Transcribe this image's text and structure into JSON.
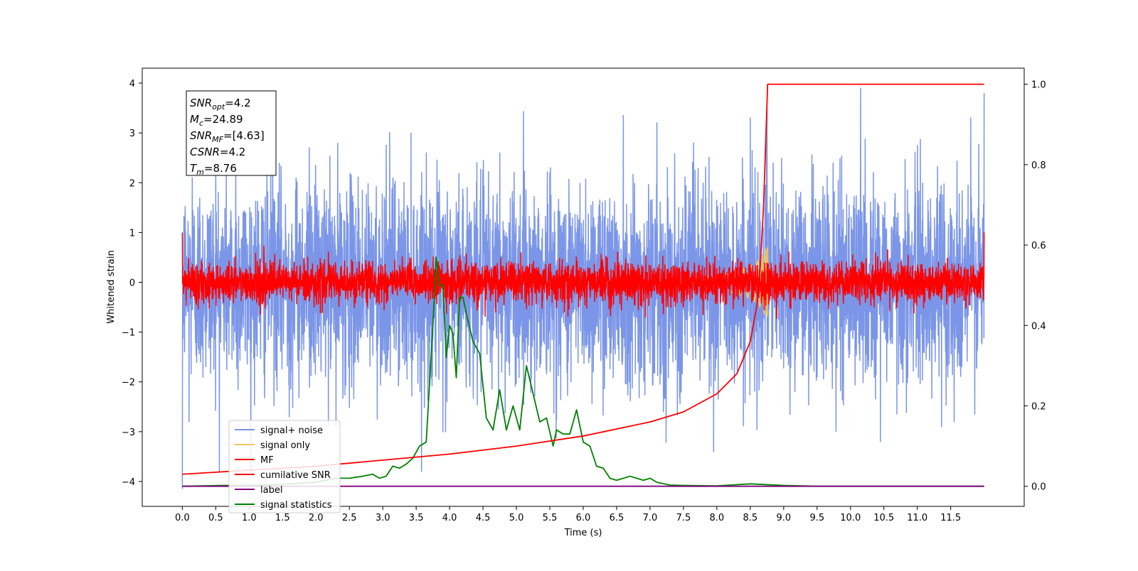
{
  "chart_data": {
    "type": "line",
    "title": "",
    "xlabel": "Time (s)",
    "ylabel": "Whitened strain",
    "xlim": [
      -0.6,
      12.6
    ],
    "ylim": [
      -4.5,
      4.3
    ],
    "y2lim": [
      -0.05,
      1.04
    ],
    "xticks": [
      "0.0",
      "0.5",
      "1.0",
      "1.5",
      "2.0",
      "2.5",
      "3.0",
      "3.5",
      "4.0",
      "4.5",
      "5.0",
      "5.5",
      "6.0",
      "6.5",
      "7.0",
      "7.5",
      "8.0",
      "8.5",
      "9.0",
      "9.5",
      "10.0",
      "10.5",
      "11.0",
      "11.5"
    ],
    "yticks": [
      "4",
      "3",
      "2",
      "1",
      "0",
      "−1",
      "−2",
      "−3",
      "−4"
    ],
    "y2ticks": [
      "1.0",
      "0.8",
      "0.6",
      "0.4",
      "0.2",
      "0.0"
    ],
    "grid": false,
    "legend_position": "lower-left",
    "series": [
      {
        "name": "signal+ noise",
        "color": "#7b96e8",
        "axis": "left",
        "kind": "noise",
        "amplitude_std": 1.0,
        "x_range": [
          0,
          12
        ],
        "peak_points": [
          [
            0.15,
            2.1
          ],
          [
            0.5,
            2.5
          ],
          [
            0.8,
            2.6
          ],
          [
            1.35,
            2.7
          ],
          [
            1.9,
            2.7
          ],
          [
            2.3,
            3.65
          ],
          [
            3.05,
            2.75
          ],
          [
            3.65,
            2.6
          ],
          [
            4.75,
            2.6
          ],
          [
            5.5,
            2.2
          ],
          [
            6.6,
            3.35
          ],
          [
            7.65,
            2.8
          ],
          [
            8.5,
            3.3
          ],
          [
            8.75,
            3.5
          ],
          [
            10.15,
            3.9
          ],
          [
            11.8,
            3.3
          ],
          [
            12.0,
            3.8
          ]
        ],
        "trough_points": [
          [
            0.0,
            -4.15
          ],
          [
            0.1,
            -2.8
          ],
          [
            1.6,
            -2.7
          ],
          [
            2.3,
            -2.9
          ],
          [
            3.9,
            -3.0
          ],
          [
            7.2,
            -2.6
          ],
          [
            7.95,
            -3.4
          ],
          [
            10.45,
            -3.2
          ],
          [
            11.55,
            -2.8
          ]
        ]
      },
      {
        "name": "signal only",
        "color": "#f5c55a",
        "axis": "left",
        "kind": "chirp",
        "x_range": [
          0,
          12
        ],
        "merger_time": 8.76,
        "peak_amplitude": 0.7
      },
      {
        "name": "MF",
        "color": "#ff0000",
        "axis": "left",
        "kind": "noise",
        "amplitude_std": 0.2,
        "x_range": [
          0,
          12
        ],
        "endpoints": [
          [
            0.0,
            1.0
          ],
          [
            12.0,
            1.0
          ]
        ]
      },
      {
        "name": "cumilative SNR",
        "color": "#ff0000",
        "axis": "right",
        "kind": "curve",
        "x": [
          0.0,
          0.5,
          1.0,
          2.0,
          3.0,
          4.0,
          5.0,
          6.0,
          7.0,
          7.5,
          8.0,
          8.3,
          8.5,
          8.6,
          8.65,
          8.7,
          8.73,
          8.76,
          9.0,
          10.0,
          11.0,
          12.0
        ],
        "y": [
          0.03,
          0.035,
          0.04,
          0.05,
          0.065,
          0.08,
          0.1,
          0.125,
          0.16,
          0.185,
          0.23,
          0.28,
          0.36,
          0.45,
          0.55,
          0.7,
          0.85,
          1.0,
          1.0,
          1.0,
          1.0,
          1.0
        ]
      },
      {
        "name": "label",
        "color": "#800080",
        "axis": "right",
        "kind": "curve",
        "x": [
          0.0,
          12.0
        ],
        "y": [
          0.0,
          0.0
        ]
      },
      {
        "name": "signal statistics",
        "color": "#008000",
        "axis": "right",
        "kind": "curve",
        "x": [
          0.0,
          0.3,
          0.6,
          1.0,
          1.5,
          2.0,
          2.3,
          2.5,
          2.7,
          2.85,
          2.95,
          3.05,
          3.15,
          3.25,
          3.35,
          3.45,
          3.55,
          3.65,
          3.75,
          3.8,
          3.85,
          3.9,
          3.95,
          4.0,
          4.05,
          4.1,
          4.15,
          4.2,
          4.25,
          4.35,
          4.45,
          4.55,
          4.65,
          4.75,
          4.85,
          4.95,
          5.05,
          5.15,
          5.25,
          5.35,
          5.45,
          5.55,
          5.6,
          5.7,
          5.8,
          5.9,
          6.0,
          6.1,
          6.2,
          6.3,
          6.4,
          6.5,
          6.7,
          6.9,
          7.0,
          7.1,
          7.3,
          7.5,
          8.0,
          8.5,
          9.0,
          9.5,
          10.0,
          11.0,
          12.0
        ],
        "y": [
          0.0,
          0.001,
          0.002,
          0.002,
          0.005,
          0.01,
          0.02,
          0.02,
          0.025,
          0.03,
          0.02,
          0.025,
          0.05,
          0.045,
          0.055,
          0.07,
          0.1,
          0.11,
          0.4,
          0.57,
          0.5,
          0.5,
          0.32,
          0.4,
          0.38,
          0.27,
          0.47,
          0.47,
          0.43,
          0.36,
          0.33,
          0.17,
          0.14,
          0.24,
          0.14,
          0.2,
          0.14,
          0.3,
          0.23,
          0.16,
          0.17,
          0.1,
          0.14,
          0.13,
          0.13,
          0.19,
          0.11,
          0.1,
          0.05,
          0.045,
          0.02,
          0.015,
          0.025,
          0.015,
          0.02,
          0.01,
          0.003,
          0.002,
          0.001,
          0.006,
          0.002,
          0.0,
          0.0,
          0.0,
          0.0
        ]
      }
    ],
    "annotations": [
      {
        "sym": "SNR",
        "sub": "opt",
        "value": "=4.2"
      },
      {
        "sym": "M",
        "sub": "c",
        "value": "=24.89"
      },
      {
        "sym": "SNR",
        "sub": "MF",
        "value": "=[4.63]"
      },
      {
        "sym": "CSNR",
        "sub": "",
        "value": "=4.2"
      },
      {
        "sym": "T",
        "sub": "m",
        "value": "=8.76"
      }
    ]
  }
}
